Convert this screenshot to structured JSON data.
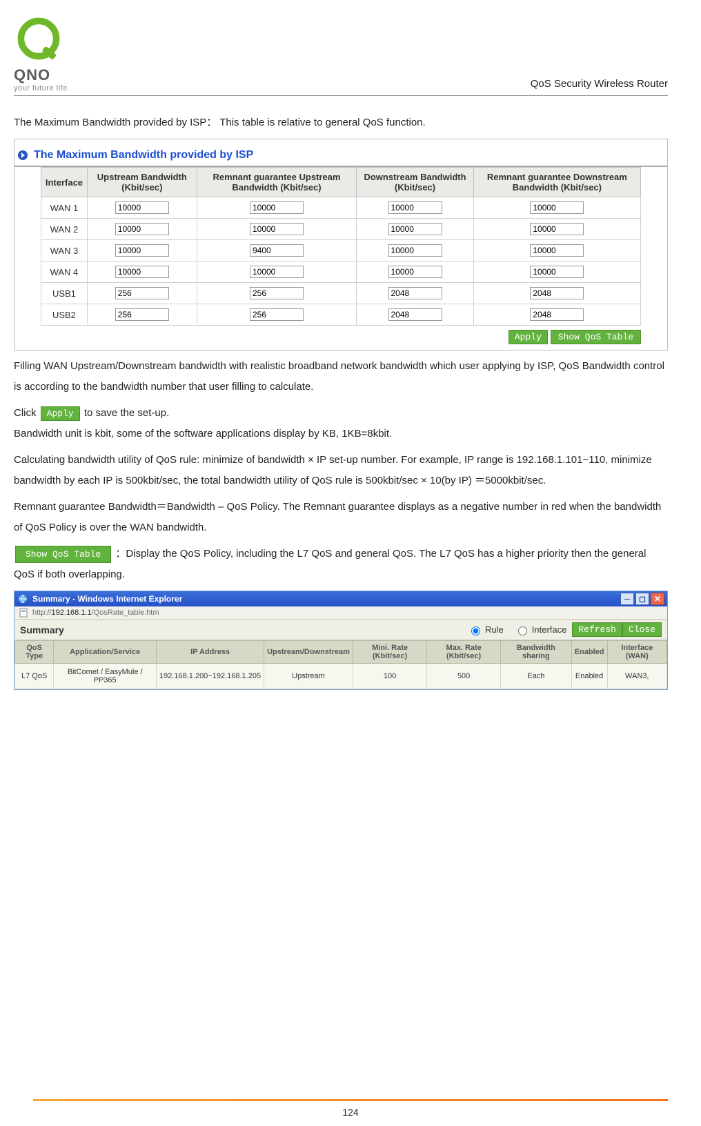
{
  "header": {
    "brand": "QNO",
    "tagline": "your future life",
    "doc_title": "QoS Security Wireless Router"
  },
  "intro_line": "The Maximum Bandwidth provided by ISP： This table is relative to general QoS function.",
  "bw_section": {
    "title": "The Maximum Bandwidth provided by ISP",
    "columns": [
      "Interface",
      "Upstream Bandwidth (Kbit/sec)",
      "Remnant guarantee Upstream Bandwidth (Kbit/sec)",
      "Downstream Bandwidth (Kbit/sec)",
      "Remnant guarantee Downstream Bandwidth (Kbit/sec)"
    ],
    "rows": [
      {
        "iface": "WAN 1",
        "up": "10000",
        "rem_up": "10000",
        "down": "10000",
        "rem_down": "10000"
      },
      {
        "iface": "WAN 2",
        "up": "10000",
        "rem_up": "10000",
        "down": "10000",
        "rem_down": "10000"
      },
      {
        "iface": "WAN 3",
        "up": "10000",
        "rem_up": "9400",
        "down": "10000",
        "rem_down": "10000"
      },
      {
        "iface": "WAN 4",
        "up": "10000",
        "rem_up": "10000",
        "down": "10000",
        "rem_down": "10000"
      },
      {
        "iface": "USB1",
        "up": "256",
        "rem_up": "256",
        "down": "2048",
        "rem_down": "2048"
      },
      {
        "iface": "USB2",
        "up": "256",
        "rem_up": "256",
        "down": "2048",
        "rem_down": "2048"
      }
    ],
    "apply_label": "Apply",
    "show_qos_label": "Show QoS Table"
  },
  "para1_a": "Filling WAN Upstream/Downstream bandwidth with realistic broadband network bandwidth which user applying by ISP, QoS Bandwidth control is according to the bandwidth number that user filling to calculate.",
  "para1_b_prefix": "Click ",
  "para1_b_suffix": " to save the set-up.",
  "para2": "Bandwidth unit is kbit, some of the software applications display by KB, 1KB=8kbit.",
  "para3": "Calculating bandwidth utility of QoS rule: minimize of bandwidth × IP set-up number. For example, IP range is 192.168.1.101~110, minimize bandwidth by each IP is 500kbit/sec, the total bandwidth utility of QoS rule is 500kbit/sec × 10(by IP)  ＝5000kbit/sec.",
  "para4": "Remnant guarantee Bandwidth＝Bandwidth – QoS Policy. The Remnant guarantee displays as a negative number in red when the bandwidth of QoS Policy is over the WAN bandwidth.",
  "showqos_inline_label": "Show QoS Table",
  "para5_suffix": "：Display the QoS Policy, including the L7 QoS and general QoS. The L7 QoS has a higher priority then the general QoS if both overlapping.",
  "summary_window": {
    "title": "Summary - Windows Internet Explorer",
    "url_prefix": "http://",
    "url_host": "192.168.1.1",
    "url_path": "/QosRate_table.htm",
    "header_label": "Summary",
    "radio_rule": "Rule",
    "radio_interface": "Interface",
    "refresh_label": "Refresh",
    "close_label": "Close",
    "columns": [
      "QoS Type",
      "Application/Service",
      "IP Address",
      "Upstream/Downstream",
      "Mini. Rate (Kbit/sec)",
      "Max. Rate (Kbit/sec)",
      "Bandwidth sharing",
      "Enabled",
      "Interface (WAN)"
    ],
    "row": {
      "type": "L7 QoS",
      "app": "BitComet / EasyMule / PP365",
      "ip": "192.168.1.200~192.168.1.205",
      "dir": "Upstream",
      "min": "100",
      "max": "500",
      "share": "Each",
      "enabled": "Enabled",
      "iface": "WAN3,"
    }
  },
  "page_number": "124",
  "colors": {
    "section_title": "#1a4fcf",
    "btn_green_bg": "#62b23e",
    "footer_gradient_from": "#f7a531",
    "footer_gradient_to": "#f37021"
  }
}
